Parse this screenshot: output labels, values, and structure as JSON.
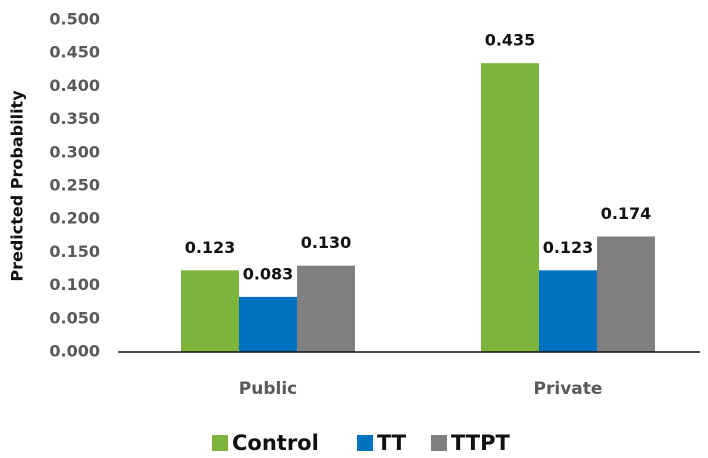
{
  "chart_data": {
    "type": "bar",
    "y_label": "Predicted Probability",
    "categories": [
      "Public",
      "Private"
    ],
    "series": [
      {
        "name": "Control",
        "color": "#7db43b",
        "values": [
          0.123,
          0.435
        ],
        "value_labels": [
          "0.123",
          "0.435"
        ]
      },
      {
        "name": "TT",
        "color": "#0070c0",
        "values": [
          0.083,
          0.123
        ],
        "value_labels": [
          "0.083",
          "0.123"
        ]
      },
      {
        "name": "TTPT",
        "color": "#808080",
        "values": [
          0.13,
          0.174
        ],
        "value_labels": [
          "0.130",
          "0.174"
        ]
      }
    ],
    "ylim": [
      0,
      0.5
    ],
    "yticks": [
      {
        "value": 0,
        "label": "0.000"
      },
      {
        "value": 0.05,
        "label": "0.050"
      },
      {
        "value": 0.1,
        "label": "0.100"
      },
      {
        "value": 0.15,
        "label": "0.150"
      },
      {
        "value": 0.2,
        "label": "0.200"
      },
      {
        "value": 0.25,
        "label": "0.250"
      },
      {
        "value": 0.3,
        "label": "0.300"
      },
      {
        "value": 0.35,
        "label": "0.350"
      },
      {
        "value": 0.4,
        "label": "0.400"
      },
      {
        "value": 0.45,
        "label": "0.450"
      },
      {
        "value": 0.5,
        "label": "0.500"
      }
    ],
    "grid": false,
    "legend": "bottom"
  }
}
